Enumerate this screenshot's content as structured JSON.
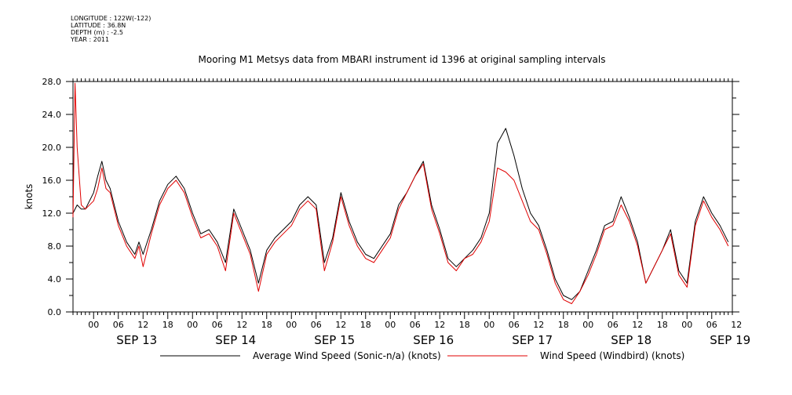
{
  "meta": {
    "longitude": "LONGITUDE : 122W(-122)",
    "latitude": "LATITUDE : 36.8N",
    "depth": "DEPTH (m) : -2.5",
    "year": "YEAR : 2011"
  },
  "chart_data": {
    "type": "line",
    "title": "Mooring M1 Metsys data from MBARI instrument id 1396 at original sampling intervals",
    "ylabel": "knots",
    "xlabel": "",
    "ylim": [
      0,
      28
    ],
    "y_ticks": [
      "0.0",
      "4.0",
      "8.0",
      "12.0",
      "16.0",
      "20.0",
      "24.0",
      "28.0"
    ],
    "x_range_hours": [
      -5,
      155
    ],
    "x_hour_labels": [
      "00",
      "06",
      "12",
      "18",
      "00",
      "06",
      "12",
      "18",
      "00",
      "06",
      "12",
      "18",
      "00",
      "06",
      "12",
      "18",
      "00",
      "06",
      "12",
      "18",
      "00",
      "06",
      "12",
      "18",
      "00",
      "06",
      "12"
    ],
    "x_day_labels": [
      "SEP 13",
      "SEP 14",
      "SEP 15",
      "SEP 16",
      "SEP 17",
      "SEP 18",
      "SEP 19"
    ],
    "legend_position": "bottom",
    "colors": {
      "sonic": "#000000",
      "windbird": "#e00000"
    },
    "series": [
      {
        "name": "Average Wind Speed (Sonic-n/a) (knots)",
        "key": "sonic",
        "x": [
          -5,
          -4,
          -3,
          -2,
          0,
          1,
          2,
          3,
          4,
          5,
          6,
          8,
          10,
          11,
          12,
          14,
          16,
          18,
          20,
          22,
          24,
          26,
          28,
          30,
          32,
          34,
          36,
          38,
          40,
          42,
          44,
          46,
          48,
          50,
          52,
          54,
          56,
          58,
          60,
          62,
          64,
          66,
          68,
          70,
          72,
          74,
          76,
          78,
          80,
          82,
          84,
          86,
          88,
          90,
          92,
          94,
          96,
          98,
          100,
          102,
          104,
          106,
          108,
          110,
          112,
          114,
          116,
          118,
          120,
          122,
          124,
          126,
          128,
          130,
          132,
          134,
          136,
          138,
          140,
          142,
          144,
          146,
          148,
          150,
          152,
          154
        ],
        "y": [
          12.0,
          13.0,
          12.5,
          12.5,
          14.5,
          16.5,
          18.3,
          16.0,
          15.0,
          13.0,
          11.0,
          8.5,
          7.0,
          8.5,
          7.0,
          10.0,
          13.5,
          15.5,
          16.5,
          15.0,
          12.0,
          9.5,
          10.0,
          8.5,
          6.0,
          12.5,
          10.0,
          7.5,
          3.5,
          7.5,
          9.0,
          10.0,
          11.0,
          13.0,
          14.0,
          13.0,
          6.0,
          9.0,
          14.5,
          11.0,
          8.5,
          7.0,
          6.5,
          8.0,
          9.5,
          13.0,
          14.5,
          16.5,
          18.3,
          13.0,
          10.0,
          6.5,
          5.5,
          6.5,
          7.5,
          9.0,
          12.0,
          20.5,
          22.3,
          19.0,
          15.0,
          12.0,
          10.5,
          7.5,
          4.0,
          2.0,
          1.5,
          2.5,
          5.0,
          7.5,
          10.5,
          11.0,
          14.0,
          11.5,
          8.5,
          3.5,
          5.5,
          7.5,
          10.0,
          5.0,
          3.5,
          11.0,
          14.0,
          12.0,
          10.5,
          8.5
        ]
      },
      {
        "name": "Wind Speed (Windbird) (knots)",
        "key": "windbird",
        "x": [
          -5,
          -4.5,
          -4,
          -3,
          -2,
          0,
          1,
          2,
          3,
          4,
          5,
          6,
          8,
          10,
          11,
          12,
          14,
          16,
          18,
          20,
          22,
          24,
          26,
          28,
          30,
          32,
          34,
          36,
          38,
          40,
          42,
          44,
          46,
          48,
          50,
          52,
          54,
          56,
          58,
          60,
          62,
          64,
          66,
          68,
          70,
          72,
          74,
          76,
          78,
          80,
          82,
          84,
          86,
          88,
          90,
          92,
          94,
          96,
          98,
          100,
          102,
          104,
          106,
          108,
          110,
          112,
          114,
          116,
          118,
          120,
          122,
          124,
          126,
          128,
          130,
          132,
          134,
          136,
          138,
          140,
          142,
          144,
          146,
          148,
          150,
          152,
          154
        ],
        "y": [
          11.5,
          27.8,
          20.0,
          13.0,
          12.5,
          13.5,
          15.0,
          17.5,
          15.0,
          14.5,
          12.5,
          10.5,
          8.0,
          6.5,
          8.0,
          5.5,
          9.5,
          13.0,
          15.0,
          16.0,
          14.5,
          11.5,
          9.0,
          9.5,
          8.0,
          5.0,
          12.0,
          9.5,
          7.0,
          2.5,
          7.0,
          8.5,
          9.5,
          10.5,
          12.5,
          13.5,
          12.5,
          5.0,
          8.5,
          14.0,
          10.5,
          8.0,
          6.5,
          6.0,
          7.5,
          9.0,
          12.5,
          14.5,
          16.5,
          18.0,
          12.5,
          9.5,
          6.0,
          5.0,
          6.5,
          7.0,
          8.5,
          11.0,
          17.5,
          17.0,
          16.0,
          13.5,
          11.0,
          10.0,
          7.0,
          3.5,
          1.5,
          1.0,
          2.5,
          4.5,
          7.0,
          10.0,
          10.5,
          13.0,
          11.0,
          8.0,
          3.5,
          5.5,
          7.5,
          9.5,
          4.5,
          3.0,
          10.5,
          13.5,
          11.5,
          10.0,
          8.0
        ]
      }
    ]
  }
}
